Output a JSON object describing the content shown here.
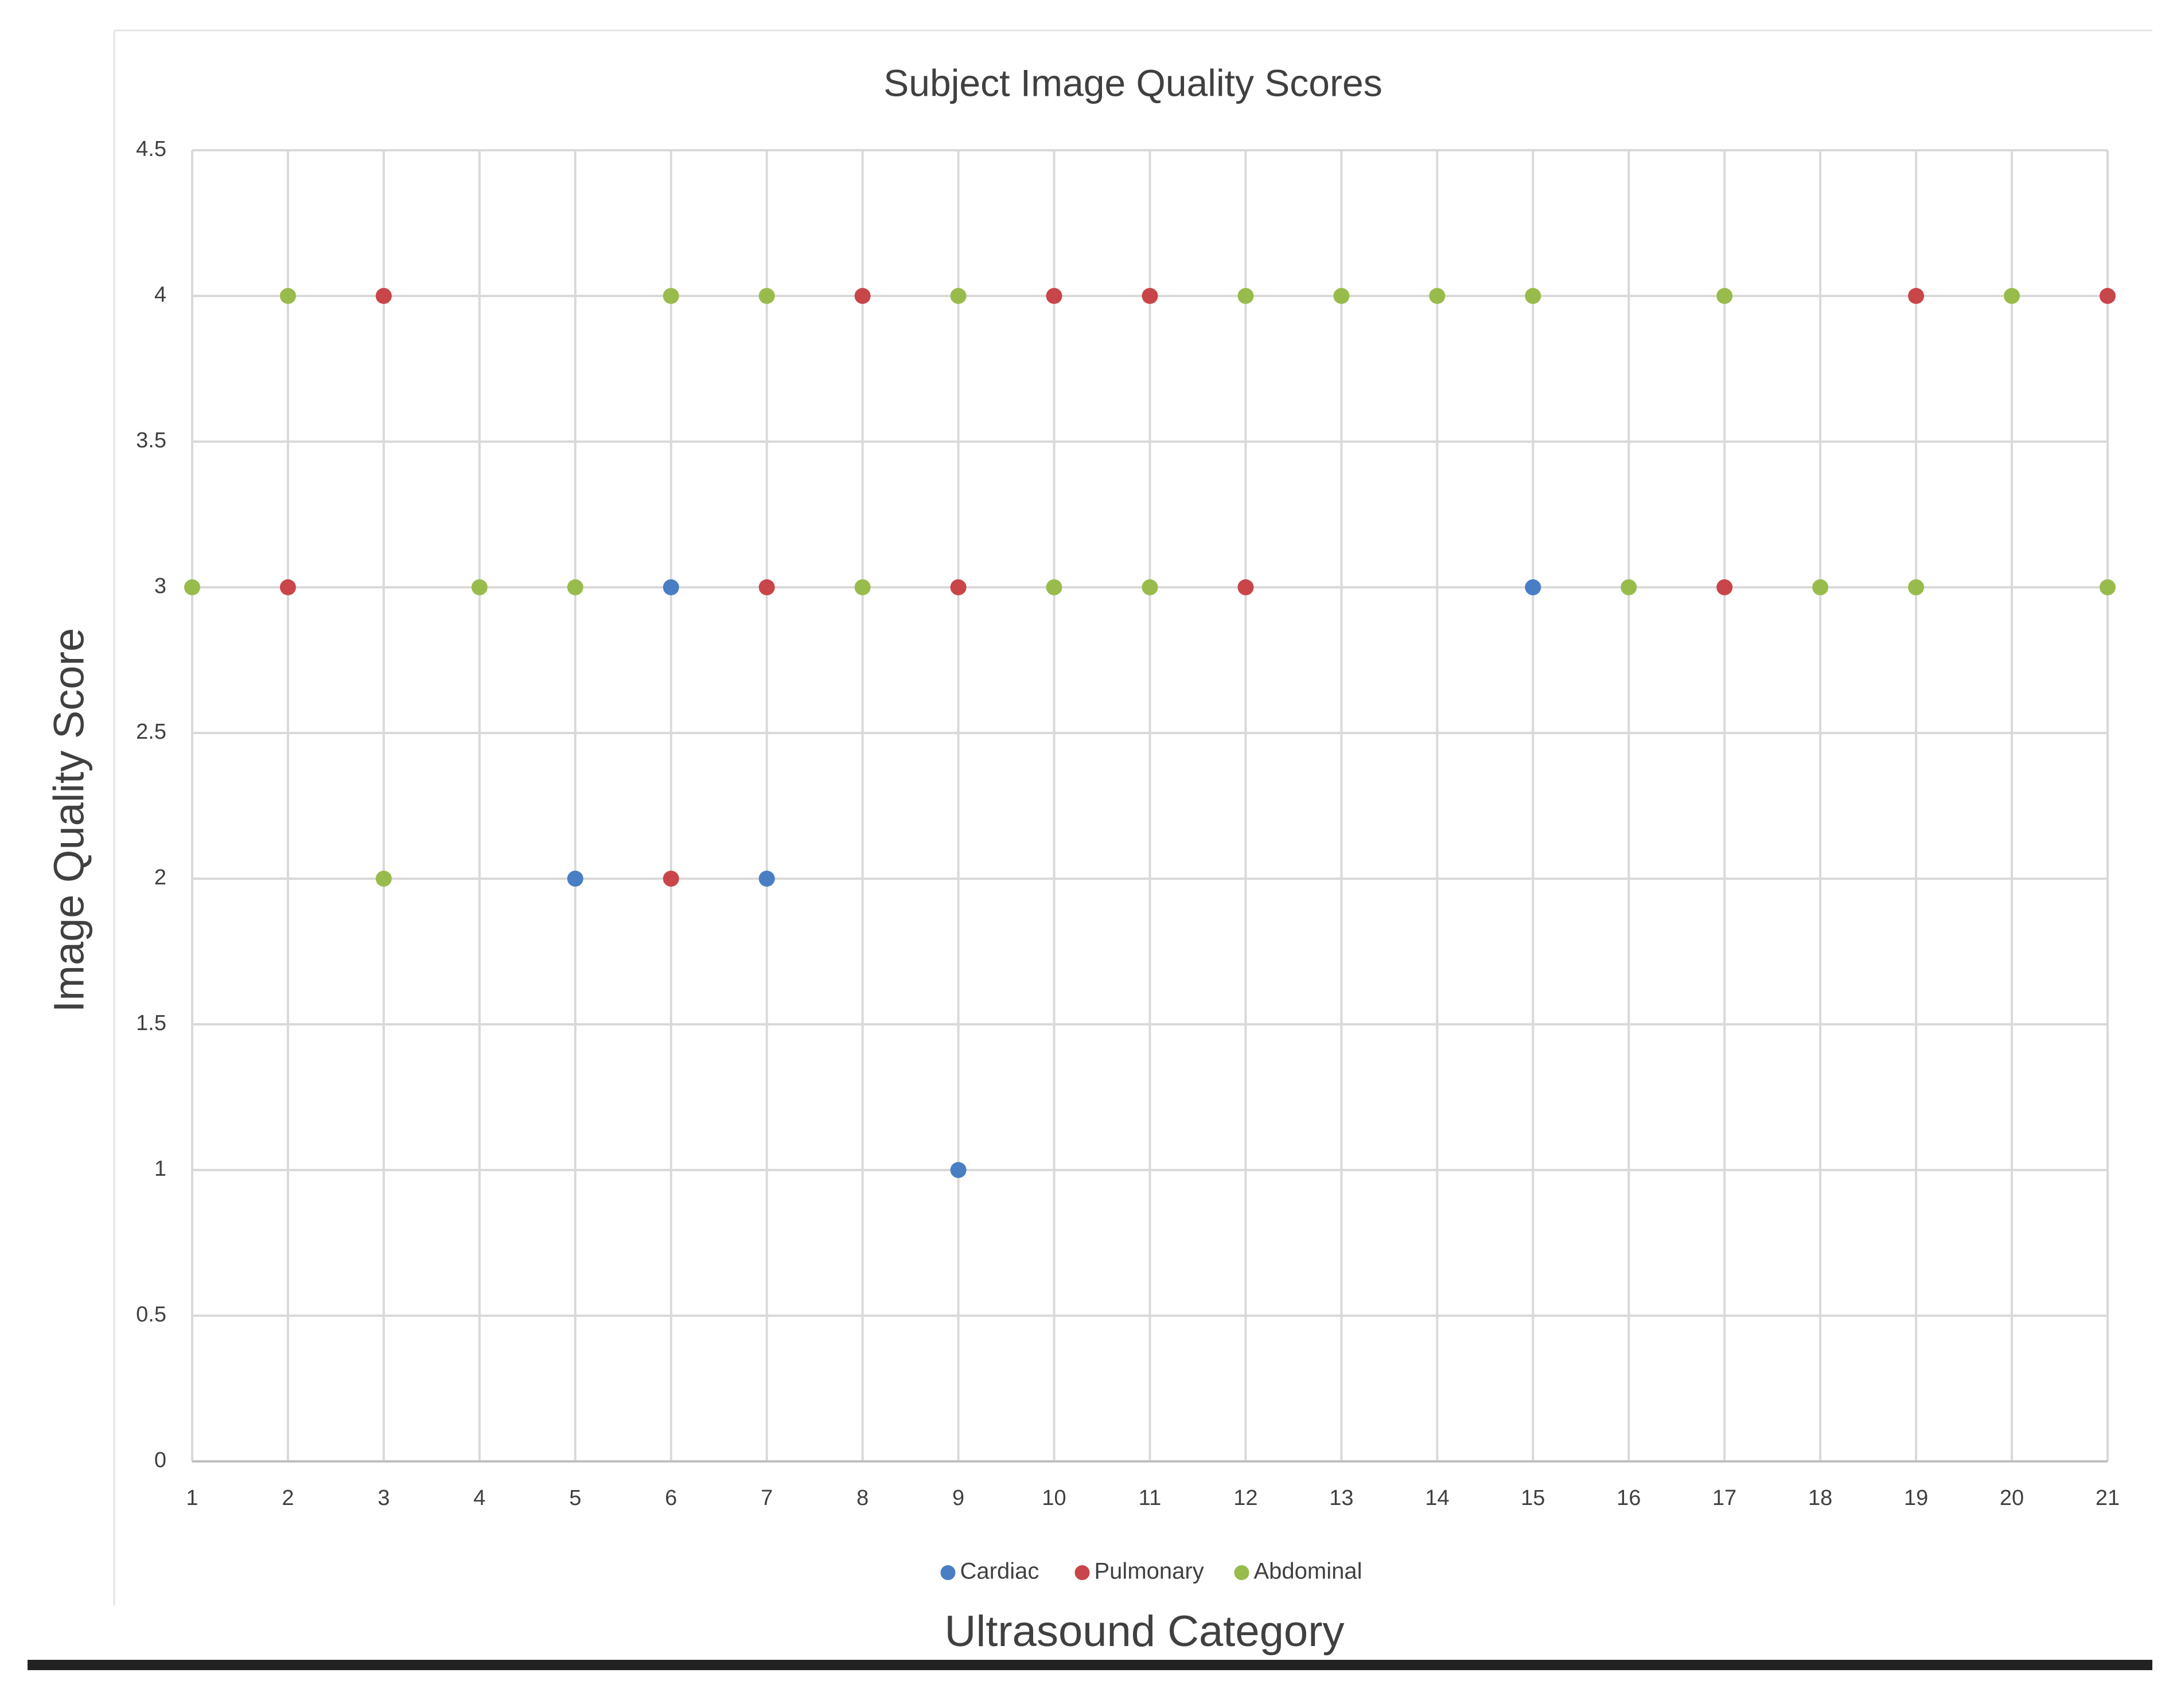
{
  "chart_data": {
    "type": "scatter",
    "title": "Subject Image Quality Scores",
    "x_label": "Ultrasound Category",
    "y_label": "Image Quality Score",
    "xlim": [
      1,
      21
    ],
    "xticks": [
      1,
      2,
      3,
      4,
      5,
      6,
      7,
      8,
      9,
      10,
      11,
      12,
      13,
      14,
      15,
      16,
      17,
      18,
      19,
      20,
      21
    ],
    "ylim": [
      0,
      4.5
    ],
    "yticks": [
      0,
      0.5,
      1,
      1.5,
      2,
      2.5,
      3,
      3.5,
      4,
      4.5
    ],
    "grid": true,
    "legend": "bottom",
    "series": [
      {
        "name": "Cardiac",
        "color": "#4a7ec4",
        "x": [
          5,
          6,
          7,
          9,
          15
        ],
        "values": [
          2,
          3,
          2,
          1,
          3
        ]
      },
      {
        "name": "Pulmonary",
        "color": "#c8454a",
        "x": [
          2,
          3,
          6,
          7,
          8,
          9,
          10,
          11,
          12,
          17,
          19,
          21
        ],
        "values": [
          3,
          4,
          2,
          3,
          4,
          3,
          4,
          4,
          3,
          3,
          4,
          4
        ]
      },
      {
        "name": "Abdominal",
        "color": "#98bc4c",
        "x": [
          1,
          2,
          3,
          4,
          5,
          6,
          7,
          8,
          9,
          10,
          11,
          12,
          13,
          14,
          15,
          16,
          17,
          18,
          19,
          20,
          21
        ],
        "values": [
          3,
          4,
          2,
          3,
          3,
          4,
          4,
          3,
          4,
          3,
          3,
          4,
          4,
          4,
          4,
          3,
          4,
          3,
          3,
          4,
          3
        ]
      }
    ]
  }
}
